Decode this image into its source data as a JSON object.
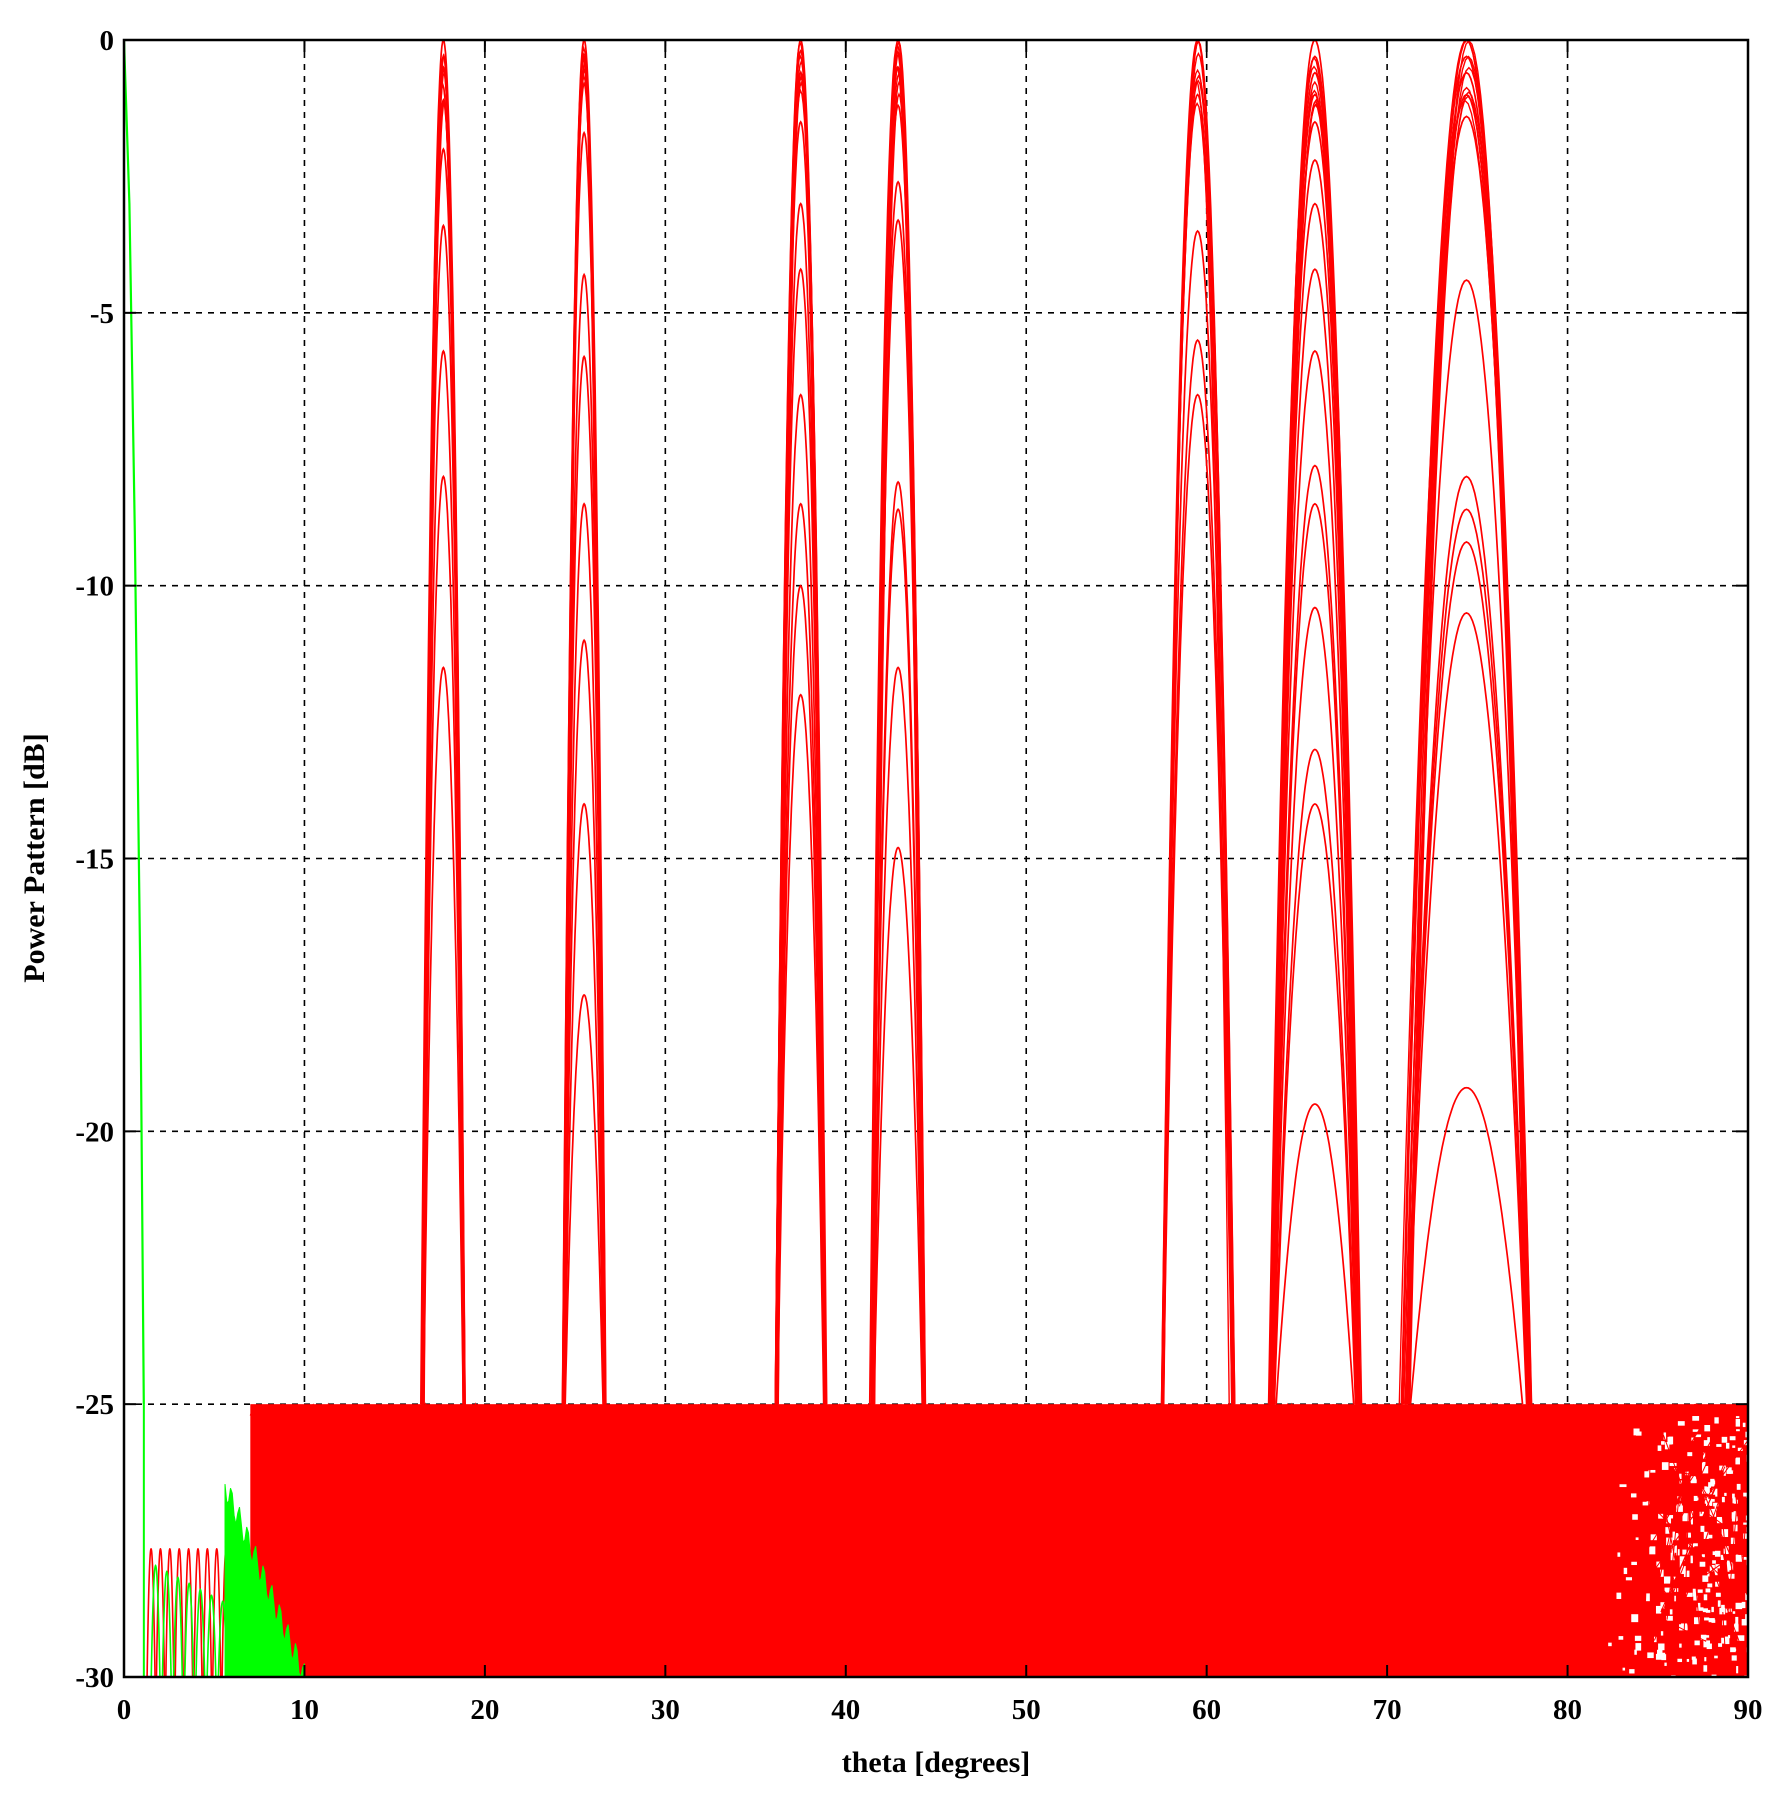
{
  "chart_data": {
    "type": "line",
    "title": "",
    "xlabel": "theta [degrees]",
    "ylabel": "Power Pattern [dB]",
    "xlim": [
      0,
      90
    ],
    "ylim": [
      -30,
      0
    ],
    "xticks": [
      0,
      10,
      20,
      30,
      40,
      50,
      60,
      70,
      80,
      90
    ],
    "yticks": [
      0,
      -5,
      -10,
      -15,
      -20,
      -25,
      -30
    ],
    "grid": true,
    "legend": "none",
    "colors": {
      "main_beam": "#00ff00",
      "scanned_beams": "#ff0000",
      "axes": "#000000"
    },
    "sidelobe_floor_db": -25,
    "series": [
      {
        "color": "#00ff00",
        "peak_angle_deg": 0,
        "peak_db": 0,
        "x": [
          0,
          0.3,
          0.6,
          0.9,
          1.0,
          1.1
        ],
        "y": [
          0,
          -3,
          -9,
          -17,
          -21,
          -25
        ]
      },
      {
        "color": "#ff0000",
        "beams": [
          {
            "center_deg": 17.7,
            "half_width_deg": 1.2,
            "peaks_db": [
              0,
              -0.5,
              -1.1,
              -2.0,
              -3.4,
              -5.7,
              -8.0,
              -11.5
            ]
          },
          {
            "center_deg": 25.5,
            "half_width_deg": 1.2,
            "peaks_db": [
              0,
              -0.8,
              -1.7,
              -4.3,
              -5.8,
              -8.5,
              -11.0,
              -14.0,
              -17.5
            ]
          },
          {
            "center_deg": 37.5,
            "half_width_deg": 1.4,
            "peaks_db": [
              0,
              -0.2,
              -0.6,
              -1.5,
              -3.0,
              -4.2,
              -6.5,
              -8.5,
              -10.0,
              -12.0
            ]
          },
          {
            "center_deg": 42.9,
            "half_width_deg": 1.5,
            "peaks_db": [
              0,
              -0.5,
              -1.2,
              -2.6,
              -3.3,
              -8.1,
              -8.6,
              -11.5,
              -14.8
            ]
          },
          {
            "center_deg": 59.5,
            "half_width_deg": 2.0,
            "peaks_db": [
              0,
              -1.0,
              -3.5,
              -5.5,
              -6.5
            ]
          },
          {
            "center_deg": 66.0,
            "half_width_deg": 2.5,
            "peaks_db": [
              0,
              -0.3,
              -0.6,
              -1.0,
              -1.5,
              -2.2,
              -3.0,
              -4.2,
              -5.7,
              -7.8,
              -8.5,
              -10.4,
              -13.0,
              -14.0,
              -19.5
            ]
          },
          {
            "center_deg": 74.4,
            "half_width_deg": 3.6,
            "peaks_db": [
              0,
              -0.3,
              -0.6,
              -1.0,
              -1.4,
              -4.4,
              -8.0,
              -8.6,
              -9.2,
              -10.5,
              -19.2
            ]
          }
        ]
      }
    ]
  }
}
